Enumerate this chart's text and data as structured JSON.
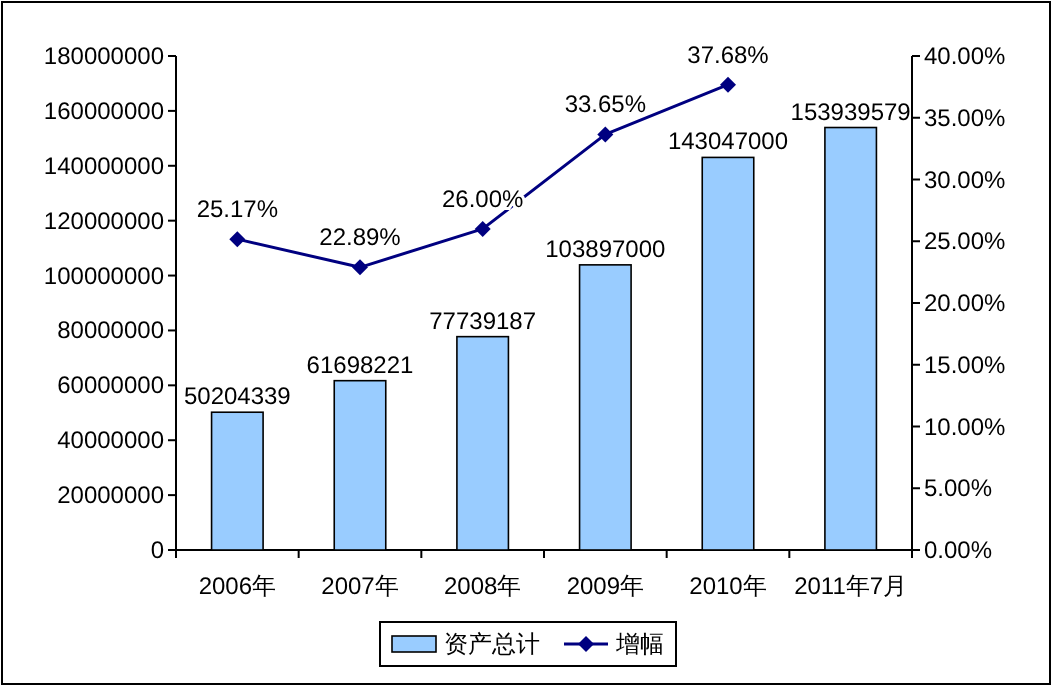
{
  "chart_data": {
    "type": "bar",
    "categories": [
      "2006年",
      "2007年",
      "2008年",
      "2009年",
      "2010年",
      "2011年7月"
    ],
    "series": [
      {
        "name": "资产总计",
        "color": "#99ccff",
        "values": [
          50204339,
          61698221,
          77739187,
          103897000,
          143047000,
          153939579
        ],
        "value_labels": [
          "50204339",
          "61698221",
          "77739187",
          "103897000",
          "143047000",
          "153939579"
        ]
      },
      {
        "name": "增幅",
        "type": "line",
        "axis": "y2",
        "color": "#000080",
        "marker": "diamond",
        "values": [
          25.17,
          22.89,
          26.0,
          33.65,
          37.68,
          null
        ],
        "value_labels": [
          "25.17%",
          "22.89%",
          "26.00%",
          "33.65%",
          "37.68%",
          null
        ]
      }
    ],
    "ylim": [
      0,
      180000000
    ],
    "yticks": [
      0,
      20000000,
      40000000,
      60000000,
      80000000,
      100000000,
      120000000,
      140000000,
      160000000,
      180000000
    ],
    "y2lim": [
      0,
      40
    ],
    "y2ticks": [
      {
        "value": 0,
        "label": "0.00%"
      },
      {
        "value": 5,
        "label": "5.00%"
      },
      {
        "value": 10,
        "label": "10.00%"
      },
      {
        "value": 15,
        "label": "15.00%"
      },
      {
        "value": 20,
        "label": "20.00%"
      },
      {
        "value": 25,
        "label": "25.00%"
      },
      {
        "value": 30,
        "label": "30.00%"
      },
      {
        "value": 35,
        "label": "35.00%"
      },
      {
        "value": 40,
        "label": "40.00%"
      }
    ],
    "legend": "bottom"
  }
}
